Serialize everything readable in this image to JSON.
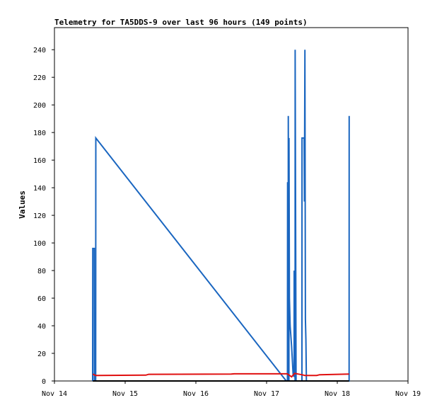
{
  "chart_data": {
    "type": "line",
    "title": "Telemetry for TA5DDS-9 over last 96 hours (149 points)",
    "ylabel": "Values",
    "xlabel": "",
    "x_ticks": [
      "Nov 14",
      "Nov 15",
      "Nov 16",
      "Nov 17",
      "Nov 18",
      "Nov 19"
    ],
    "y_ticks": [
      0,
      20,
      40,
      60,
      80,
      100,
      120,
      140,
      160,
      180,
      200,
      220,
      240
    ],
    "xlim": [
      "Nov 14 00:00",
      "Nov 19 00:00"
    ],
    "ylim": [
      0,
      256
    ],
    "grid": false,
    "series": [
      {
        "color": "#1a66c0",
        "points": [
          [
            "Nov 14 12:58",
            0
          ],
          [
            "Nov 14 13:00",
            96
          ],
          [
            "Nov 14 13:30",
            96
          ],
          [
            "Nov 14 13:32",
            0
          ],
          [
            "Nov 14 14:00",
            0
          ],
          [
            "Nov 14 14:02",
            176
          ],
          [
            "Nov 17 06:40",
            0
          ],
          [
            "Nov 17 07:05",
            0
          ],
          [
            "Nov 17 07:07",
            144
          ],
          [
            "Nov 17 07:20",
            0
          ],
          [
            "Nov 17 07:22",
            192
          ],
          [
            "Nov 17 07:35",
            0
          ],
          [
            "Nov 17 07:37",
            176
          ],
          [
            "Nov 17 07:45",
            60
          ],
          [
            "Nov 17 08:00",
            40
          ],
          [
            "Nov 17 08:30",
            25
          ],
          [
            "Nov 17 09:00",
            5
          ],
          [
            "Nov 17 09:20",
            3
          ],
          [
            "Nov 17 09:22",
            80
          ],
          [
            "Nov 17 09:40",
            0
          ],
          [
            "Nov 17 09:42",
            240
          ],
          [
            "Nov 17 10:00",
            0
          ],
          [
            "Nov 17 12:00",
            0
          ],
          [
            "Nov 17 12:02",
            176
          ],
          [
            "Nov 17 12:45",
            176
          ],
          [
            "Nov 17 12:50",
            130
          ],
          [
            "Nov 17 13:00",
            240
          ],
          [
            "Nov 17 13:10",
            45
          ],
          [
            "Nov 17 13:20",
            30
          ],
          [
            "Nov 17 13:30",
            0
          ],
          [
            "Nov 18 04:00",
            0
          ],
          [
            "Nov 18 04:02",
            192
          ]
        ]
      },
      {
        "color": "#e01010",
        "points": [
          [
            "Nov 14 13:00",
            5
          ],
          [
            "Nov 14 14:00",
            4
          ],
          [
            "Nov 15 07:00",
            4.2
          ],
          [
            "Nov 15 08:00",
            4.8
          ],
          [
            "Nov 16 12:00",
            5
          ],
          [
            "Nov 16 13:00",
            5.2
          ],
          [
            "Nov 17 07:00",
            5.2
          ],
          [
            "Nov 17 08:30",
            3
          ],
          [
            "Nov 17 09:30",
            5.5
          ],
          [
            "Nov 17 12:00",
            4.5
          ],
          [
            "Nov 17 13:00",
            4
          ],
          [
            "Nov 17 17:00",
            4
          ],
          [
            "Nov 17 18:00",
            4.5
          ],
          [
            "Nov 18 04:00",
            5
          ]
        ]
      },
      {
        "color": "#000000",
        "points": [
          [
            "Nov 14 13:00",
            0
          ],
          [
            "Nov 18 04:00",
            0
          ]
        ]
      }
    ]
  }
}
